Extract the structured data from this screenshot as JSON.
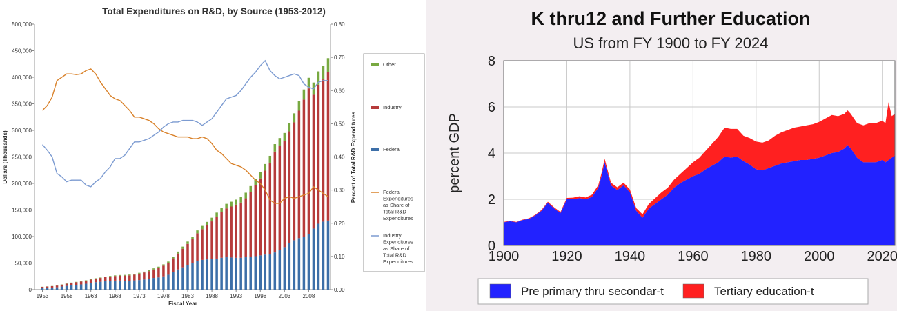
{
  "chart_data": [
    {
      "type": "bar",
      "subtype": "stacked bar with two line overlays on secondary axis",
      "title": "Total Expenditures on R&D, by Source (1953-2012)",
      "xlabel": "Fiscal Year",
      "ylabel": "Dollars (Thousands)",
      "y2label": "Percent of Total R&D Expenditures",
      "ylim": [
        0,
        500000
      ],
      "y2lim": [
        0,
        0.8
      ],
      "yticks": [
        "0",
        "50,000",
        "100,000",
        "150,000",
        "200,000",
        "250,000",
        "300,000",
        "350,000",
        "400,000",
        "450,000",
        "500,000"
      ],
      "y2ticks": [
        "0.00",
        "0.10",
        "0.20",
        "0.30",
        "0.40",
        "0.50",
        "0.60",
        "0.70",
        "0.80"
      ],
      "xticks": [
        "1953",
        "1958",
        "1963",
        "1968",
        "1973",
        "1978",
        "1983",
        "1988",
        "1993",
        "1998",
        "2003",
        "2008"
      ],
      "colors": {
        "other": "#78a941",
        "industry": "#b63b3b",
        "federal": "#3d6fa8",
        "fed_share": "#d9822b",
        "ind_share": "#7c9bd1"
      },
      "legend_position": "right",
      "legend": [
        {
          "key": "other",
          "label": "Other",
          "kind": "bar"
        },
        {
          "key": "industry",
          "label": "Industry",
          "kind": "bar"
        },
        {
          "key": "federal",
          "label": "Federal",
          "kind": "bar"
        },
        {
          "key": "fed_share",
          "label": "Federal Expenditures as Share of Total R&D Expenditures",
          "kind": "line"
        },
        {
          "key": "ind_share",
          "label": "Industry Expenditures as Share of Total R&D Expenditures",
          "kind": "line"
        }
      ],
      "years": [
        1953,
        1954,
        1955,
        1956,
        1957,
        1958,
        1959,
        1960,
        1961,
        1962,
        1963,
        1964,
        1965,
        1966,
        1967,
        1968,
        1969,
        1970,
        1971,
        1972,
        1973,
        1974,
        1975,
        1976,
        1977,
        1978,
        1979,
        1980,
        1981,
        1982,
        1983,
        1984,
        1985,
        1986,
        1987,
        1988,
        1989,
        1990,
        1991,
        1992,
        1993,
        1994,
        1995,
        1996,
        1997,
        1998,
        1999,
        2000,
        2001,
        2002,
        2003,
        2004,
        2005,
        2006,
        2007,
        2008,
        2009,
        2010,
        2011,
        2012
      ],
      "series": [
        {
          "name": "Federal",
          "key": "federal",
          "values": [
            3000,
            3300,
            3700,
            4400,
            5800,
            7000,
            8200,
            9000,
            9800,
            11000,
            12500,
            14000,
            14800,
            15800,
            16600,
            17000,
            17100,
            16800,
            16900,
            17400,
            18000,
            19000,
            20500,
            22000,
            23000,
            25000,
            28000,
            33000,
            38000,
            42000,
            46000,
            50000,
            54000,
            56000,
            57000,
            57500,
            58500,
            60000,
            61000,
            60500,
            60000,
            60000,
            61000,
            62000,
            63000,
            64500,
            66000,
            67000,
            70000,
            75000,
            80000,
            88000,
            93000,
            97000,
            100000,
            104000,
            115000,
            124000,
            128000,
            130000
          ]
        },
        {
          "name": "Industry",
          "key": "industry",
          "values": [
            2200,
            2500,
            2800,
            3200,
            3600,
            4000,
            4500,
            5000,
            5500,
            6000,
            6400,
            6700,
            7200,
            7700,
            8200,
            8700,
            9200,
            9600,
            10000,
            10800,
            12000,
            13200,
            14300,
            16000,
            18000,
            20000,
            22000,
            26000,
            30000,
            35000,
            40000,
            45000,
            52000,
            58000,
            64000,
            71000,
            79000,
            86000,
            92000,
            96000,
            100000,
            104000,
            111000,
            122000,
            134000,
            145000,
            158000,
            172000,
            190000,
            196000,
            200000,
            210000,
            222000,
            240000,
            258000,
            275000,
            252000,
            262000,
            268000,
            280000
          ]
        },
        {
          "name": "Other",
          "key": "other",
          "values": [
            200,
            250,
            300,
            350,
            400,
            450,
            500,
            550,
            600,
            650,
            700,
            750,
            800,
            900,
            1000,
            1100,
            1200,
            1300,
            1400,
            1500,
            1600,
            1700,
            1800,
            2000,
            2200,
            2500,
            2800,
            3200,
            3600,
            4000,
            4500,
            5000,
            5500,
            6000,
            6500,
            7000,
            7500,
            8000,
            8500,
            9000,
            9500,
            10000,
            10500,
            11000,
            11500,
            12000,
            12500,
            13000,
            14000,
            14500,
            15000,
            16000,
            17000,
            18000,
            19000,
            20000,
            23000,
            25000,
            26000,
            26000
          ]
        },
        {
          "name": "Federal Expenditures as Share of Total R&D Expenditures",
          "key": "fed_share",
          "axis": "y2",
          "x": [
            1953,
            1954,
            1955,
            1956,
            1957,
            1958,
            1959,
            1960,
            1961,
            1962,
            1963,
            1964,
            1965,
            1966,
            1967,
            1968,
            1969,
            1970,
            1971,
            1972,
            1973,
            1974,
            1975,
            1976,
            1977,
            1978,
            1979,
            1980,
            1981,
            1982,
            1983,
            1984,
            1985,
            1986,
            1987,
            1988,
            1989,
            1990,
            1991,
            1992,
            1993,
            1994,
            1995,
            1996,
            1997,
            1998,
            1999,
            2000,
            2001,
            2002,
            2003,
            2004,
            2005,
            2006,
            2007,
            2008,
            2009,
            2010,
            2011,
            2012
          ],
          "values": [
            0.54,
            0.555,
            0.58,
            0.63,
            0.64,
            0.65,
            0.65,
            0.648,
            0.65,
            0.66,
            0.665,
            0.65,
            0.625,
            0.605,
            0.585,
            0.575,
            0.57,
            0.555,
            0.54,
            0.52,
            0.52,
            0.515,
            0.51,
            0.5,
            0.485,
            0.475,
            0.47,
            0.465,
            0.46,
            0.46,
            0.46,
            0.455,
            0.455,
            0.46,
            0.455,
            0.44,
            0.42,
            0.41,
            0.395,
            0.38,
            0.375,
            0.37,
            0.36,
            0.345,
            0.33,
            0.32,
            0.3,
            0.27,
            0.26,
            0.26,
            0.275,
            0.28,
            0.275,
            0.28,
            0.285,
            0.29,
            0.31,
            0.3,
            0.29,
            0.28
          ]
        },
        {
          "name": "Industry Expenditures as Share of Total R&D Expenditures",
          "key": "ind_share",
          "axis": "y2",
          "x": [
            1953,
            1954,
            1955,
            1956,
            1957,
            1958,
            1959,
            1960,
            1961,
            1962,
            1963,
            1964,
            1965,
            1966,
            1967,
            1968,
            1969,
            1970,
            1971,
            1972,
            1973,
            1974,
            1975,
            1976,
            1977,
            1978,
            1979,
            1980,
            1981,
            1982,
            1983,
            1984,
            1985,
            1986,
            1987,
            1988,
            1989,
            1990,
            1991,
            1992,
            1993,
            1994,
            1995,
            1996,
            1997,
            1998,
            1999,
            2000,
            2001,
            2002,
            2003,
            2004,
            2005,
            2006,
            2007,
            2008,
            2009,
            2010,
            2011,
            2012
          ],
          "values": [
            0.437,
            0.42,
            0.4,
            0.35,
            0.34,
            0.325,
            0.33,
            0.33,
            0.33,
            0.315,
            0.31,
            0.325,
            0.335,
            0.355,
            0.37,
            0.395,
            0.395,
            0.405,
            0.425,
            0.445,
            0.445,
            0.45,
            0.455,
            0.465,
            0.475,
            0.49,
            0.5,
            0.505,
            0.505,
            0.51,
            0.51,
            0.51,
            0.505,
            0.495,
            0.505,
            0.515,
            0.535,
            0.555,
            0.575,
            0.58,
            0.585,
            0.6,
            0.62,
            0.64,
            0.655,
            0.675,
            0.69,
            0.66,
            0.645,
            0.635,
            0.64,
            0.645,
            0.65,
            0.645,
            0.62,
            0.61,
            0.605,
            0.625,
            0.63,
            0.63
          ]
        }
      ]
    },
    {
      "type": "area",
      "subtype": "stacked area",
      "title": "K thru12 and Further Education",
      "subtitle": "US from FY 1900 to FY 2024",
      "xlabel": "",
      "ylabel": "percent GDP",
      "xlim": [
        1900,
        2024
      ],
      "ylim": [
        0,
        8
      ],
      "yticks": [
        "0",
        "2",
        "4",
        "6",
        "8"
      ],
      "xticks": [
        "1900",
        "1920",
        "1940",
        "1960",
        "1980",
        "2000",
        "2020"
      ],
      "grid": true,
      "legend_position": "bottom",
      "colors": {
        "primary": "#2222ff",
        "tertiary": "#ff2020"
      },
      "series": [
        {
          "name": "Pre primary thru secondar-t",
          "key": "primary",
          "x": [
            1900,
            1902,
            1904,
            1906,
            1908,
            1910,
            1912,
            1914,
            1916,
            1918,
            1920,
            1922,
            1924,
            1926,
            1928,
            1930,
            1931,
            1932,
            1933,
            1934,
            1936,
            1938,
            1940,
            1942,
            1944,
            1946,
            1948,
            1950,
            1952,
            1954,
            1956,
            1958,
            1960,
            1962,
            1964,
            1966,
            1968,
            1970,
            1972,
            1974,
            1976,
            1978,
            1980,
            1982,
            1984,
            1986,
            1988,
            1990,
            1992,
            1994,
            1996,
            1998,
            2000,
            2002,
            2004,
            2006,
            2008,
            2009,
            2010,
            2012,
            2014,
            2016,
            2018,
            2020,
            2021,
            2022,
            2023,
            2024
          ],
          "values": [
            1.0,
            1.05,
            1.0,
            1.1,
            1.15,
            1.3,
            1.5,
            1.85,
            1.6,
            1.4,
            2.0,
            2.0,
            2.05,
            2.0,
            2.1,
            2.5,
            3.0,
            3.6,
            3.1,
            2.6,
            2.4,
            2.6,
            2.3,
            1.5,
            1.2,
            1.6,
            1.8,
            2.0,
            2.2,
            2.5,
            2.7,
            2.85,
            3.0,
            3.1,
            3.3,
            3.45,
            3.6,
            3.85,
            3.8,
            3.85,
            3.65,
            3.5,
            3.3,
            3.25,
            3.35,
            3.45,
            3.55,
            3.6,
            3.65,
            3.7,
            3.7,
            3.75,
            3.8,
            3.9,
            4.0,
            4.05,
            4.2,
            4.35,
            4.2,
            3.8,
            3.6,
            3.6,
            3.6,
            3.7,
            3.6,
            3.7,
            3.8,
            3.9
          ]
        },
        {
          "name": "Tertiary education-t",
          "key": "tertiary",
          "x": [
            1900,
            1902,
            1904,
            1906,
            1908,
            1910,
            1912,
            1914,
            1916,
            1918,
            1920,
            1922,
            1924,
            1926,
            1928,
            1930,
            1931,
            1932,
            1933,
            1934,
            1936,
            1938,
            1940,
            1942,
            1944,
            1946,
            1948,
            1950,
            1952,
            1954,
            1956,
            1958,
            1960,
            1962,
            1964,
            1966,
            1968,
            1970,
            1972,
            1974,
            1976,
            1978,
            1980,
            1982,
            1984,
            1986,
            1988,
            1990,
            1992,
            1994,
            1996,
            1998,
            2000,
            2002,
            2004,
            2006,
            2008,
            2009,
            2010,
            2012,
            2014,
            2016,
            2018,
            2020,
            2021,
            2022,
            2023,
            2024
          ],
          "values": [
            0.02,
            0.02,
            0.02,
            0.02,
            0.03,
            0.03,
            0.04,
            0.04,
            0.05,
            0.05,
            0.06,
            0.07,
            0.08,
            0.08,
            0.1,
            0.12,
            0.13,
            0.15,
            0.13,
            0.12,
            0.12,
            0.12,
            0.12,
            0.12,
            0.15,
            0.2,
            0.25,
            0.3,
            0.3,
            0.35,
            0.4,
            0.5,
            0.6,
            0.7,
            0.8,
            0.95,
            1.1,
            1.25,
            1.25,
            1.2,
            1.1,
            1.15,
            1.2,
            1.2,
            1.2,
            1.3,
            1.35,
            1.4,
            1.45,
            1.45,
            1.5,
            1.5,
            1.55,
            1.6,
            1.65,
            1.55,
            1.5,
            1.5,
            1.5,
            1.5,
            1.6,
            1.7,
            1.7,
            1.7,
            1.7,
            2.5,
            1.8,
            1.8
          ]
        }
      ],
      "legend": [
        {
          "key": "primary",
          "label": "Pre primary thru secondar-t"
        },
        {
          "key": "tertiary",
          "label": "Tertiary education-t"
        }
      ]
    }
  ]
}
